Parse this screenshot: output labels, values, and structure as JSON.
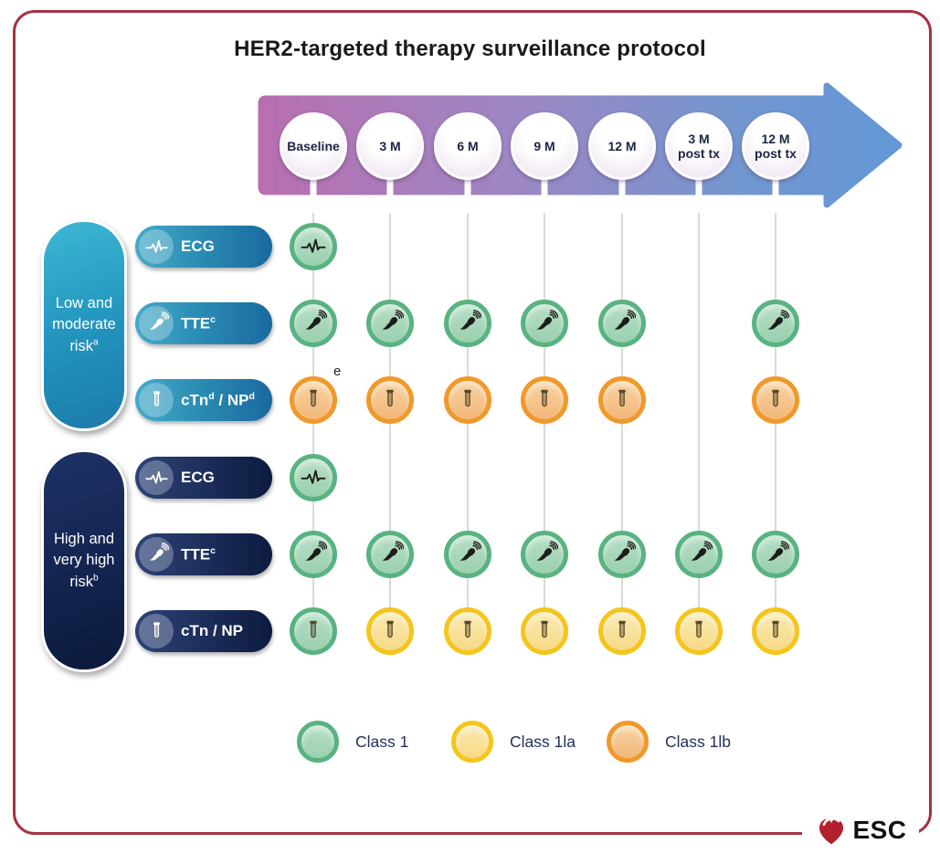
{
  "title": "HER2-targeted therapy surveillance protocol",
  "timeline": {
    "columns": [
      {
        "lines": [
          "Baseline"
        ]
      },
      {
        "lines": [
          "3 M"
        ]
      },
      {
        "lines": [
          "6 M"
        ]
      },
      {
        "lines": [
          "9 M"
        ]
      },
      {
        "lines": [
          "12 M"
        ]
      },
      {
        "lines": [
          "3 M",
          "post tx"
        ]
      },
      {
        "lines": [
          "12 M",
          "post tx"
        ]
      }
    ]
  },
  "groups": [
    {
      "name": "low-moderate",
      "label_lines": [
        "Low and",
        "moderate",
        "risk"
      ],
      "label_sup": "a",
      "rows": [
        {
          "icon": "ecg-icon",
          "label_parts": [
            {
              "t": "ECG"
            }
          ],
          "cells": [
            "1",
            null,
            null,
            null,
            null,
            null,
            null
          ]
        },
        {
          "icon": "tte-probe-icon",
          "label_parts": [
            {
              "t": "TTE",
              "sup": "c"
            }
          ],
          "cells": [
            "1",
            "1",
            "1",
            "1",
            "1",
            null,
            "1"
          ]
        },
        {
          "icon": "test-tube-icon",
          "label_parts": [
            {
              "t": "cTn",
              "sup": "d"
            },
            {
              "t": " / NP",
              "sup": "d"
            }
          ],
          "cells": [
            "2b",
            "2b",
            "2b",
            "2b",
            "2b",
            null,
            "2b"
          ],
          "cell_note": {
            "col": 0,
            "text": "e"
          }
        }
      ]
    },
    {
      "name": "high-very-high",
      "label_lines": [
        "High and",
        "very high",
        "risk"
      ],
      "label_sup": "b",
      "rows": [
        {
          "icon": "ecg-icon",
          "label_parts": [
            {
              "t": "ECG"
            }
          ],
          "cells": [
            "1",
            null,
            null,
            null,
            null,
            null,
            null
          ]
        },
        {
          "icon": "tte-probe-icon",
          "label_parts": [
            {
              "t": "TTE",
              "sup": "c"
            }
          ],
          "cells": [
            "1",
            "1",
            "1",
            "1",
            "1",
            "1",
            "1"
          ]
        },
        {
          "icon": "test-tube-icon",
          "label_parts": [
            {
              "t": "cTn / NP"
            }
          ],
          "cells": [
            "1",
            "2a",
            "2a",
            "2a",
            "2a",
            "2a",
            "2a"
          ]
        }
      ]
    }
  ],
  "legend": {
    "items": [
      {
        "label": "Class 1",
        "class": "1"
      },
      {
        "label": "Class 1la",
        "class": "2a"
      },
      {
        "label": "Class 1lb",
        "class": "2b"
      }
    ]
  },
  "logo": {
    "text": "ESC"
  },
  "colors": {
    "class1_ring": "#58b381",
    "class2a_ring": "#f4c51d",
    "class2b_ring": "#f0992b",
    "arrow_start": "#b86fb0",
    "arrow_end": "#6297d7",
    "low_risk_pill": "#2193bd",
    "high_risk_pill": "#13244f",
    "border": "#a63142"
  }
}
